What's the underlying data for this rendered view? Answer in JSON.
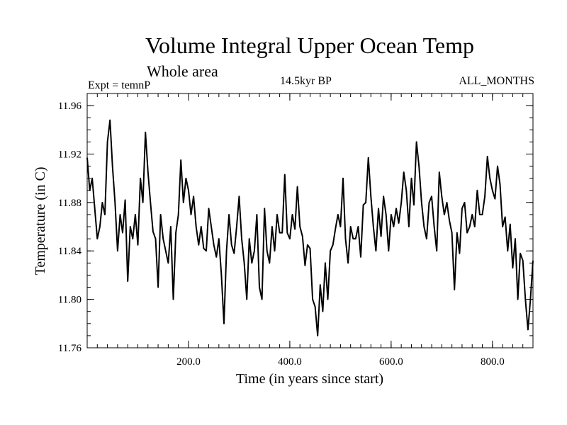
{
  "chart_data": {
    "type": "line",
    "title": "Volume Integral Upper Ocean Temp",
    "subtitle": "Whole area",
    "experiment": "Expt = temnP",
    "period": "14.5kyr BP",
    "months": "ALL_MONTHS",
    "xlabel": "Time (in years since start)",
    "ylabel": "Temperature (in C)",
    "xlim": [
      0,
      880
    ],
    "ylim": [
      11.76,
      11.97
    ],
    "xticks": [
      200,
      400,
      600,
      800
    ],
    "xtick_labels": [
      "200.0",
      "400.0",
      "600.0",
      "800.0"
    ],
    "yticks": [
      11.76,
      11.8,
      11.84,
      11.88,
      11.92,
      11.96
    ],
    "ytick_labels": [
      "11.76",
      "11.80",
      "11.84",
      "11.88",
      "11.92",
      "11.96"
    ],
    "series": [
      {
        "name": "temnP",
        "x": [
          0,
          5,
          10,
          15,
          20,
          25,
          30,
          35,
          40,
          45,
          50,
          55,
          60,
          65,
          70,
          75,
          80,
          85,
          90,
          95,
          100,
          105,
          110,
          115,
          120,
          125,
          130,
          135,
          140,
          145,
          150,
          155,
          160,
          165,
          170,
          175,
          180,
          185,
          190,
          195,
          200,
          205,
          210,
          215,
          220,
          225,
          230,
          235,
          240,
          245,
          250,
          255,
          260,
          265,
          270,
          275,
          280,
          285,
          290,
          295,
          300,
          305,
          310,
          315,
          320,
          325,
          330,
          335,
          340,
          345,
          350,
          355,
          360,
          365,
          370,
          375,
          380,
          385,
          390,
          395,
          400,
          405,
          410,
          415,
          420,
          425,
          430,
          435,
          440,
          445,
          450,
          455,
          460,
          465,
          470,
          475,
          480,
          485,
          490,
          495,
          500,
          505,
          510,
          515,
          520,
          525,
          530,
          535,
          540,
          545,
          550,
          555,
          560,
          565,
          570,
          575,
          580,
          585,
          590,
          595,
          600,
          605,
          610,
          615,
          620,
          625,
          630,
          635,
          640,
          645,
          650,
          655,
          660,
          665,
          670,
          675,
          680,
          685,
          690,
          695,
          700,
          705,
          710,
          715,
          720,
          725,
          730,
          735,
          740,
          745,
          750,
          755,
          760,
          765,
          770,
          775,
          780,
          785,
          790,
          795,
          800,
          805,
          810,
          815,
          820,
          825,
          830,
          835,
          840,
          845,
          850,
          855,
          860,
          865,
          870,
          875,
          880
        ],
        "values": [
          11.917,
          11.89,
          11.9,
          11.875,
          11.85,
          11.86,
          11.88,
          11.87,
          11.93,
          11.948,
          11.91,
          11.88,
          11.84,
          11.87,
          11.855,
          11.882,
          11.815,
          11.86,
          11.85,
          11.87,
          11.845,
          11.9,
          11.88,
          11.938,
          11.905,
          11.88,
          11.856,
          11.85,
          11.81,
          11.87,
          11.85,
          11.84,
          11.83,
          11.86,
          11.8,
          11.855,
          11.87,
          11.915,
          11.88,
          11.9,
          11.89,
          11.87,
          11.885,
          11.86,
          11.845,
          11.86,
          11.842,
          11.84,
          11.875,
          11.86,
          11.845,
          11.835,
          11.85,
          11.82,
          11.78,
          11.84,
          11.87,
          11.845,
          11.838,
          11.86,
          11.885,
          11.85,
          11.83,
          11.8,
          11.85,
          11.83,
          11.84,
          11.87,
          11.81,
          11.8,
          11.875,
          11.84,
          11.83,
          11.86,
          11.84,
          11.87,
          11.855,
          11.855,
          11.903,
          11.855,
          11.85,
          11.87,
          11.858,
          11.893,
          11.86,
          11.852,
          11.828,
          11.845,
          11.842,
          11.8,
          11.794,
          11.77,
          11.812,
          11.79,
          11.83,
          11.8,
          11.84,
          11.845,
          11.858,
          11.87,
          11.86,
          11.9,
          11.85,
          11.83,
          11.86,
          11.85,
          11.85,
          11.86,
          11.835,
          11.878,
          11.88,
          11.917,
          11.885,
          11.86,
          11.84,
          11.875,
          11.852,
          11.885,
          11.87,
          11.84,
          11.87,
          11.86,
          11.875,
          11.863,
          11.88,
          11.905,
          11.89,
          11.86,
          11.9,
          11.878,
          11.93,
          11.91,
          11.88,
          11.86,
          11.85,
          11.88,
          11.885,
          11.86,
          11.84,
          11.905,
          11.885,
          11.87,
          11.88,
          11.865,
          11.855,
          11.808,
          11.855,
          11.838,
          11.875,
          11.88,
          11.855,
          11.86,
          11.87,
          11.86,
          11.89,
          11.87,
          11.87,
          11.885,
          11.918,
          11.9,
          11.89,
          11.883,
          11.91,
          11.895,
          11.86,
          11.868,
          11.84,
          11.862,
          11.826,
          11.85,
          11.8,
          11.838,
          11.832,
          11.8,
          11.775,
          11.8,
          11.832
        ]
      }
    ]
  }
}
